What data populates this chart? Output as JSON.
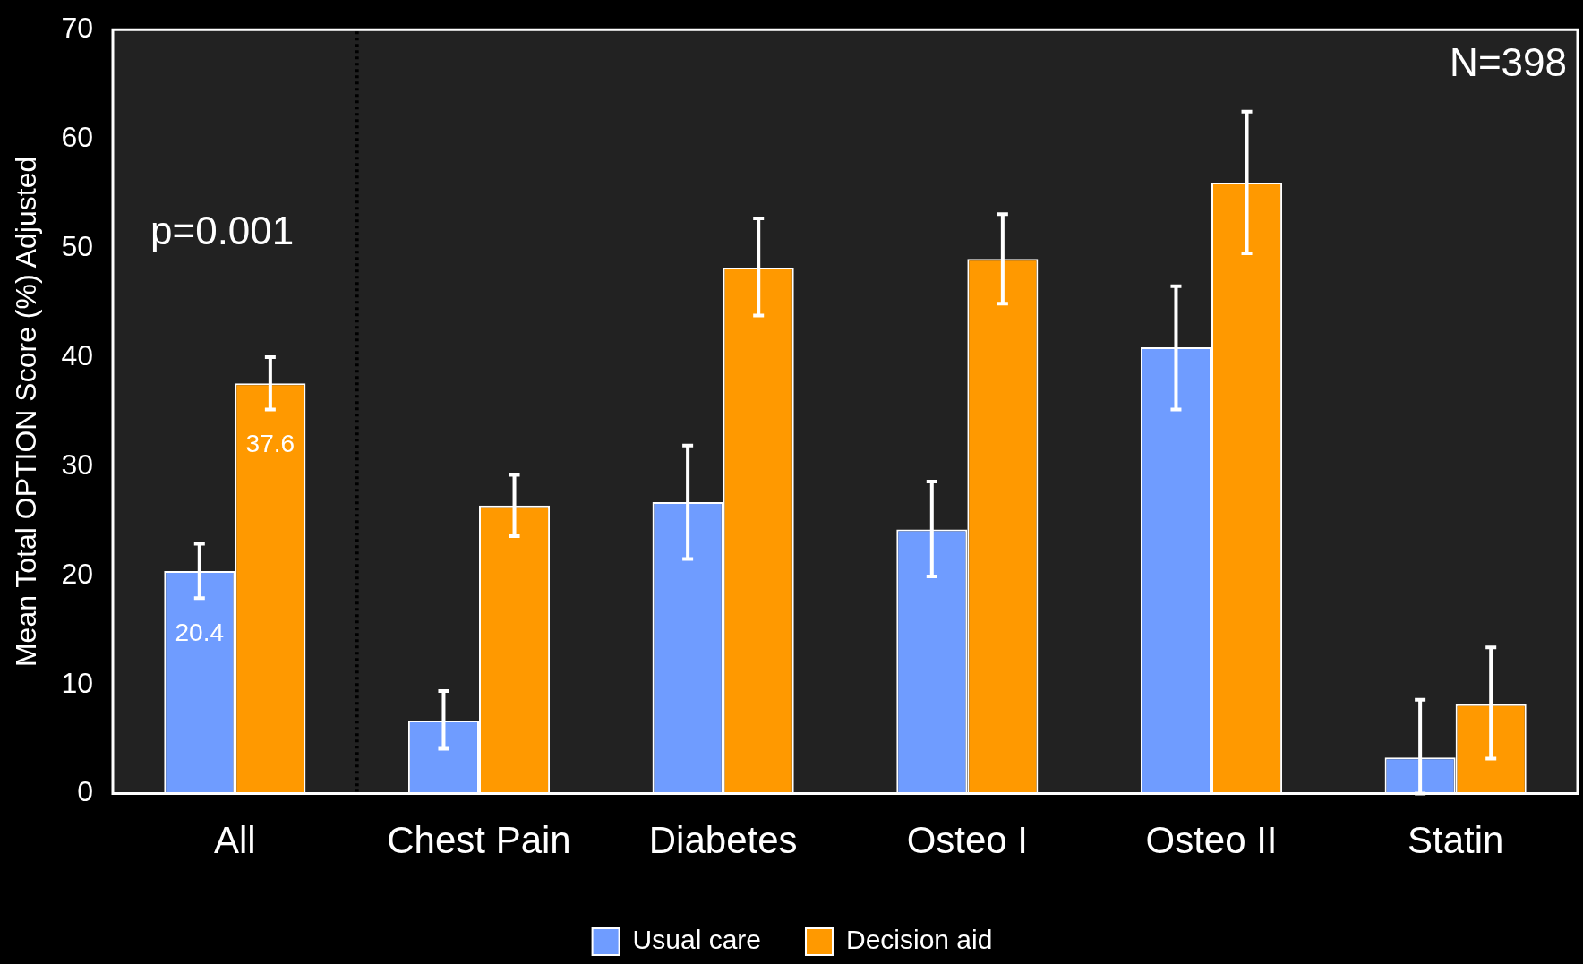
{
  "chart_data": {
    "type": "bar",
    "ylabel": "Mean Total OPTION Score (%) Adjusted",
    "categories": [
      "All",
      "Chest Pain",
      "Diabetes",
      "Osteo I",
      "Osteo II",
      "Statin"
    ],
    "series": [
      {
        "name": "Usual care",
        "color": "#6f9cff",
        "values": [
          20.4,
          6.7,
          26.7,
          24.2,
          40.9,
          3.3
        ],
        "errors": [
          [
            17.9,
            22.9
          ],
          [
            4.1,
            9.4
          ],
          [
            21.5,
            31.9
          ],
          [
            19.9,
            28.6
          ],
          [
            35.2,
            46.5
          ],
          [
            0,
            8.6
          ]
        ],
        "value_labels": [
          "20.4",
          null,
          null,
          null,
          null,
          null
        ]
      },
      {
        "name": "Decision aid",
        "color": "#ff9900",
        "values": [
          37.6,
          26.4,
          48.2,
          49.0,
          56.0,
          8.2
        ],
        "errors": [
          [
            35.2,
            40.0
          ],
          [
            23.6,
            29.2
          ],
          [
            43.8,
            52.7
          ],
          [
            44.9,
            53.1
          ],
          [
            49.5,
            62.5
          ],
          [
            3.2,
            13.4
          ]
        ],
        "value_labels": [
          "37.6",
          null,
          null,
          null,
          null,
          null
        ]
      }
    ],
    "ylim": [
      0,
      70
    ],
    "yticks": [
      0,
      10,
      20,
      30,
      40,
      50,
      60,
      70
    ],
    "grid": false,
    "legend": "bottom",
    "annotations": [
      "N=398",
      "p=0.001"
    ]
  }
}
